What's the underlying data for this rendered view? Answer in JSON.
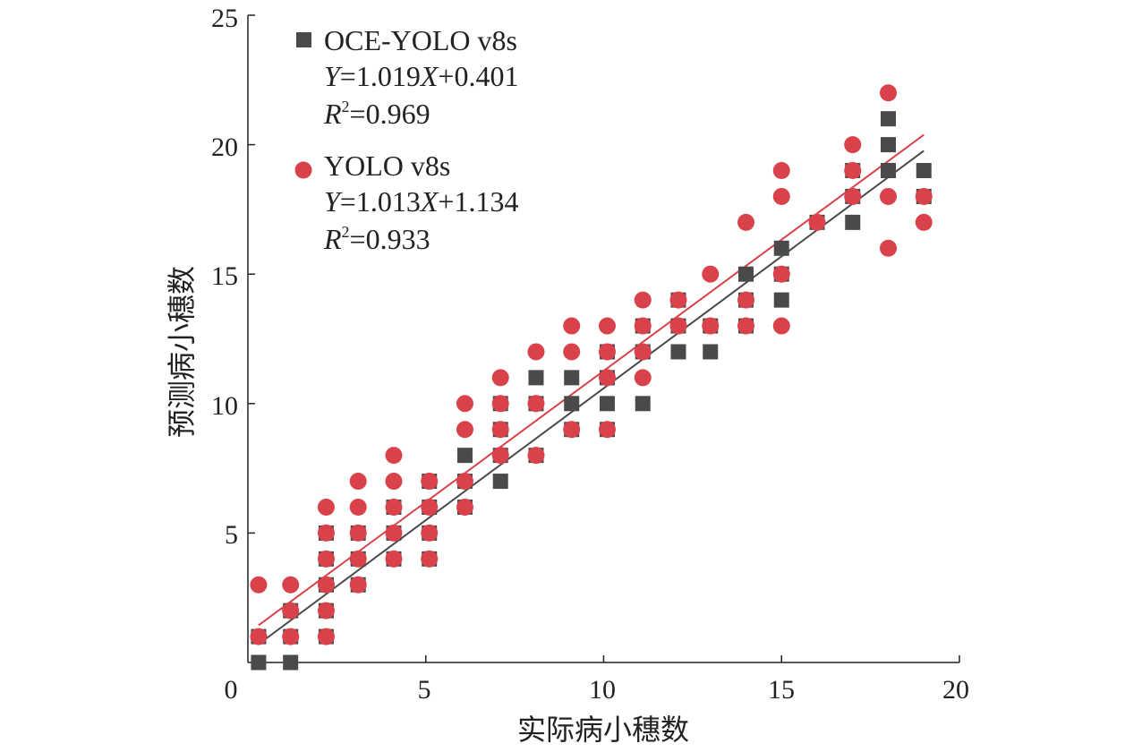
{
  "chart_data": {
    "type": "scatter",
    "xlabel": "实际病小穗数",
    "ylabel": "预测病小穗数",
    "xlim": [
      0,
      20
    ],
    "ylim": [
      0,
      25
    ],
    "xticks": [
      "0",
      "5",
      "10",
      "15",
      "20"
    ],
    "yticks": [
      "5",
      "10",
      "15",
      "20",
      "25"
    ],
    "legend_position": "top-left",
    "series": [
      {
        "name": "OCE-YOLO v8s",
        "marker": "square",
        "color": "#4a4a4a",
        "fit": {
          "slope": 1.019,
          "intercept": 0.401
        },
        "legend_lines": {
          "l1a": "Y",
          "l1b": "=1.019",
          "l1c": "X",
          "l1d": "+0.401",
          "l2a": "R",
          "l2sup": "2",
          "l2b": "=0.969"
        },
        "points": [
          [
            0.3,
            0
          ],
          [
            0.3,
            1
          ],
          [
            1.2,
            0
          ],
          [
            1.2,
            1
          ],
          [
            1.2,
            2
          ],
          [
            2.2,
            1
          ],
          [
            2.2,
            2
          ],
          [
            2.2,
            3
          ],
          [
            2.2,
            4
          ],
          [
            2.2,
            5
          ],
          [
            3.1,
            3
          ],
          [
            3.1,
            4
          ],
          [
            3.1,
            5
          ],
          [
            4.1,
            4
          ],
          [
            4.1,
            5
          ],
          [
            4.1,
            6
          ],
          [
            5.1,
            4
          ],
          [
            5.1,
            5
          ],
          [
            5.1,
            6
          ],
          [
            5.1,
            7
          ],
          [
            6.1,
            6
          ],
          [
            6.1,
            7
          ],
          [
            6.1,
            8
          ],
          [
            7.1,
            7
          ],
          [
            7.1,
            8
          ],
          [
            7.1,
            9
          ],
          [
            7.1,
            10
          ],
          [
            8.1,
            8
          ],
          [
            8.1,
            10
          ],
          [
            8.1,
            11
          ],
          [
            9.1,
            9
          ],
          [
            9.1,
            10
          ],
          [
            9.1,
            11
          ],
          [
            10.1,
            9
          ],
          [
            10.1,
            10
          ],
          [
            10.1,
            11
          ],
          [
            10.1,
            12
          ],
          [
            11.1,
            10
          ],
          [
            11.1,
            12
          ],
          [
            11.1,
            13
          ],
          [
            12.1,
            12
          ],
          [
            12.1,
            13
          ],
          [
            12.1,
            14
          ],
          [
            13.0,
            12
          ],
          [
            13.0,
            13
          ],
          [
            14.0,
            13
          ],
          [
            14.0,
            14
          ],
          [
            14.0,
            15
          ],
          [
            15.0,
            14
          ],
          [
            15.0,
            15
          ],
          [
            15.0,
            16
          ],
          [
            16.0,
            17
          ],
          [
            17.0,
            17
          ],
          [
            17.0,
            18
          ],
          [
            17.0,
            19
          ],
          [
            18.0,
            19
          ],
          [
            18.0,
            20
          ],
          [
            18.0,
            21
          ],
          [
            19.0,
            18
          ],
          [
            19.0,
            19
          ]
        ]
      },
      {
        "name": "YOLO v8s",
        "marker": "circle",
        "color": "#d9424a",
        "fit": {
          "slope": 1.013,
          "intercept": 1.134
        },
        "legend_lines": {
          "l1a": "Y",
          "l1b": "=1.013",
          "l1c": "X",
          "l1d": "+1.134",
          "l2a": "R",
          "l2sup": "2",
          "l2b": "=0.933"
        },
        "points": [
          [
            0.3,
            1
          ],
          [
            0.3,
            3
          ],
          [
            1.2,
            1
          ],
          [
            1.2,
            2
          ],
          [
            1.2,
            3
          ],
          [
            2.2,
            1
          ],
          [
            2.2,
            2
          ],
          [
            2.2,
            3
          ],
          [
            2.2,
            4
          ],
          [
            2.2,
            5
          ],
          [
            2.2,
            6
          ],
          [
            3.1,
            3
          ],
          [
            3.1,
            4
          ],
          [
            3.1,
            5
          ],
          [
            3.1,
            6
          ],
          [
            3.1,
            7
          ],
          [
            4.1,
            4
          ],
          [
            4.1,
            5
          ],
          [
            4.1,
            6
          ],
          [
            4.1,
            7
          ],
          [
            4.1,
            8
          ],
          [
            5.1,
            4
          ],
          [
            5.1,
            5
          ],
          [
            5.1,
            6
          ],
          [
            5.1,
            7
          ],
          [
            6.1,
            6
          ],
          [
            6.1,
            7
          ],
          [
            6.1,
            9
          ],
          [
            6.1,
            10
          ],
          [
            7.1,
            8
          ],
          [
            7.1,
            9
          ],
          [
            7.1,
            10
          ],
          [
            7.1,
            11
          ],
          [
            8.1,
            8
          ],
          [
            8.1,
            10
          ],
          [
            8.1,
            12
          ],
          [
            9.1,
            9
          ],
          [
            9.1,
            12
          ],
          [
            9.1,
            13
          ],
          [
            10.1,
            9
          ],
          [
            10.1,
            11
          ],
          [
            10.1,
            12
          ],
          [
            10.1,
            13
          ],
          [
            11.1,
            11
          ],
          [
            11.1,
            12
          ],
          [
            11.1,
            13
          ],
          [
            11.1,
            14
          ],
          [
            12.1,
            13
          ],
          [
            12.1,
            14
          ],
          [
            13.0,
            13
          ],
          [
            13.0,
            15
          ],
          [
            14.0,
            13
          ],
          [
            14.0,
            14
          ],
          [
            14.0,
            17
          ],
          [
            15.0,
            13
          ],
          [
            15.0,
            15
          ],
          [
            15.0,
            18
          ],
          [
            15.0,
            19
          ],
          [
            16.0,
            17
          ],
          [
            17.0,
            18
          ],
          [
            17.0,
            19
          ],
          [
            17.0,
            20
          ],
          [
            18.0,
            16
          ],
          [
            18.0,
            18
          ],
          [
            18.0,
            22
          ],
          [
            19.0,
            17
          ],
          [
            19.0,
            18
          ]
        ]
      }
    ]
  }
}
